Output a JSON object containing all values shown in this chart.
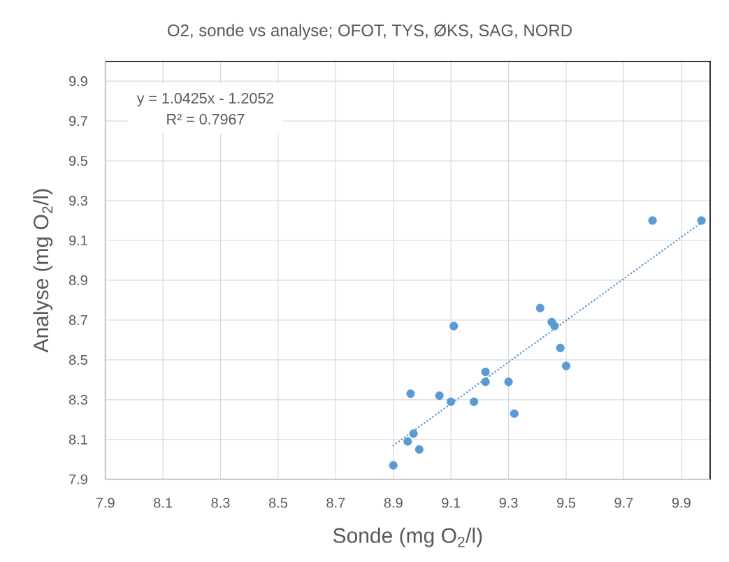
{
  "chart_data": {
    "type": "scatter",
    "title": "O2, sonde vs analyse; OFOT, TYS, ØKS, SAG, NORD",
    "xlabel": "Sonde (mg O$_{2}$/l)",
    "ylabel": "Analyse (mg O$_{2}$/l)",
    "xlim": [
      7.9,
      10.0
    ],
    "ylim": [
      7.9,
      10.0
    ],
    "xticks": [
      7.9,
      8.1,
      8.3,
      8.5,
      8.7,
      8.9,
      9.1,
      9.3,
      9.5,
      9.7,
      9.9
    ],
    "yticks": [
      7.9,
      8.1,
      8.3,
      8.5,
      8.7,
      8.9,
      9.1,
      9.3,
      9.5,
      9.7,
      9.9
    ],
    "grid": true,
    "marker": "circle",
    "series": [
      {
        "color": "#5b9bd5",
        "x": [
          8.9,
          8.95,
          8.97,
          8.99,
          8.96,
          9.06,
          9.1,
          9.18,
          9.11,
          9.22,
          9.22,
          9.3,
          9.32,
          9.41,
          9.45,
          9.46,
          9.48,
          9.5,
          9.8,
          9.97
        ],
        "values": [
          7.97,
          8.09,
          8.13,
          8.05,
          8.33,
          8.32,
          8.29,
          8.29,
          8.67,
          8.44,
          8.39,
          8.39,
          8.23,
          8.76,
          8.69,
          8.67,
          8.56,
          8.47,
          9.2,
          9.2
        ]
      },
      {
        "type": "line",
        "color": "#5b9bd5",
        "line_style": "dotted",
        "marker": "none",
        "x": [
          8.9,
          9.97
        ],
        "values": [
          8.07,
          9.19
        ]
      }
    ],
    "annotations": [
      "y = 1.0425x - 1.2052",
      "R² = 0.7967"
    ]
  }
}
